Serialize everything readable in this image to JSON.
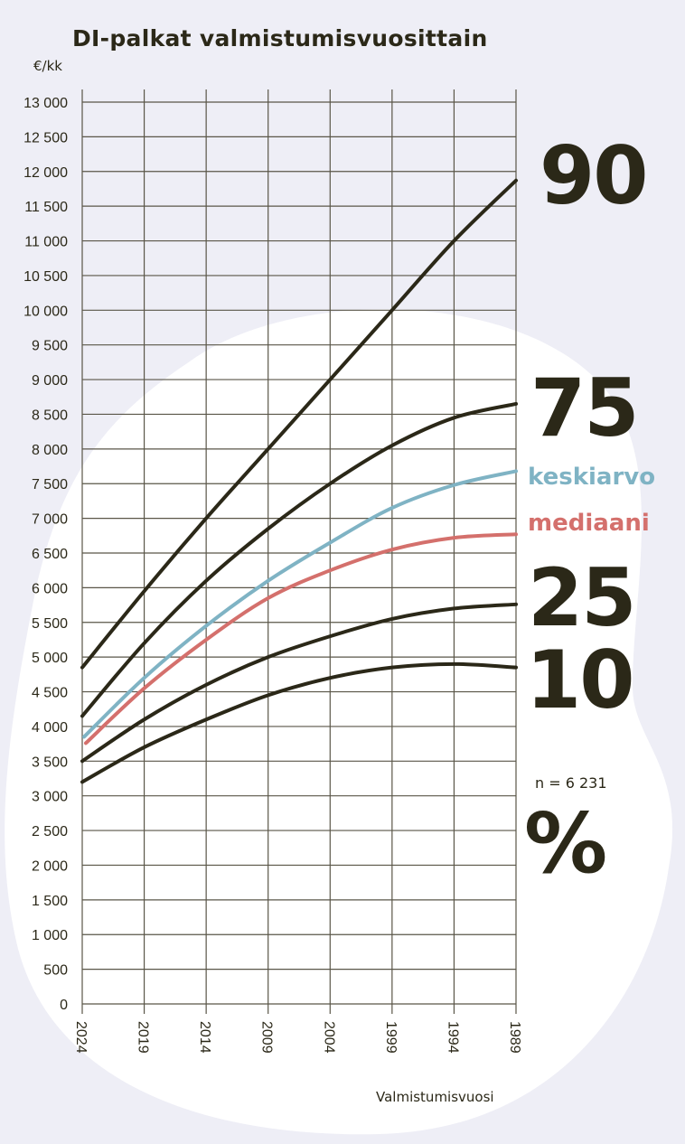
{
  "chart_data": {
    "type": "line",
    "title": "DI-palkat valmistumisvuosittain",
    "ylabel": "€/kk",
    "xlabel": "Valmistumisvuosi",
    "x": [
      2024,
      2019,
      2014,
      2009,
      2004,
      1999,
      1994,
      1989
    ],
    "x_tick_labels": [
      "2024",
      "2019",
      "2014",
      "2009",
      "2004",
      "1999",
      "1994",
      "1989"
    ],
    "ylim": [
      0,
      13000
    ],
    "y_tick_labels": [
      "0",
      "500",
      "1 000",
      "1 500",
      "2 000",
      "2 500",
      "3 000",
      "3 500",
      "4 000",
      "4 500",
      "5 000",
      "5 500",
      "6 000",
      "6 500",
      "7 000",
      "7 500",
      "8 000",
      "8 500",
      "9 000",
      "9 500",
      "10 000",
      "10 500",
      "11 000",
      "11 500",
      "12 000",
      "12 500",
      "13 000"
    ],
    "grid": true,
    "series": [
      {
        "name": "90",
        "color": "#2b2818",
        "values": [
          4850,
          5950,
          7000,
          8000,
          9000,
          10000,
          11000,
          11870
        ]
      },
      {
        "name": "75",
        "color": "#2b2818",
        "values": [
          4150,
          5200,
          6100,
          6850,
          7500,
          8050,
          8450,
          8650
        ]
      },
      {
        "name": "keskiarvo",
        "color": "#7fb3c4",
        "values": [
          3850,
          4700,
          5450,
          6100,
          6650,
          7150,
          7480,
          7680
        ]
      },
      {
        "name": "mediaani",
        "color": "#d4706c",
        "values": [
          3760,
          4550,
          5250,
          5850,
          6250,
          6550,
          6720,
          6770
        ]
      },
      {
        "name": "25",
        "color": "#2b2818",
        "values": [
          3500,
          4100,
          4600,
          5000,
          5300,
          5550,
          5700,
          5760
        ]
      },
      {
        "name": "10",
        "color": "#2b2818",
        "values": [
          3200,
          3700,
          4100,
          4450,
          4700,
          4850,
          4900,
          4850
        ]
      }
    ],
    "annotations": {
      "n": "n = 6 231",
      "percent": "%"
    }
  }
}
